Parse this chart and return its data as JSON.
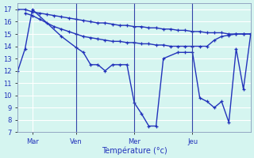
{
  "background_color": "#d5f5f0",
  "grid_color": "#ffffff",
  "line_color": "#2233bb",
  "xlabel": "Température (°c)",
  "ylim": [
    7,
    17.5
  ],
  "yticks": [
    7,
    8,
    9,
    10,
    11,
    12,
    13,
    14,
    15,
    16,
    17
  ],
  "xlim": [
    0,
    96
  ],
  "vline_x": [
    24,
    48,
    72
  ],
  "day_ticks": [
    6,
    24,
    48,
    72
  ],
  "day_labels": [
    "Mar",
    "Ven",
    "Mer",
    "Jeu"
  ],
  "series1": {
    "x": [
      0,
      3,
      6,
      9,
      12,
      15,
      18,
      21,
      24,
      27,
      30,
      33,
      36,
      39,
      42,
      45,
      48,
      51,
      54,
      57,
      60,
      63,
      66,
      69,
      72,
      75,
      78,
      81,
      84,
      87,
      90,
      93,
      96
    ],
    "y": [
      17.0,
      17.0,
      16.8,
      16.7,
      16.6,
      16.5,
      16.4,
      16.3,
      16.2,
      16.1,
      16.0,
      15.9,
      15.9,
      15.8,
      15.7,
      15.7,
      15.6,
      15.6,
      15.5,
      15.5,
      15.4,
      15.4,
      15.3,
      15.3,
      15.2,
      15.2,
      15.1,
      15.1,
      15.1,
      15.0,
      15.0,
      15.0,
      15.0
    ]
  },
  "series2": {
    "x": [
      3,
      6,
      9,
      12,
      15,
      18,
      21,
      24,
      27,
      30,
      33,
      36,
      39,
      42,
      45,
      48,
      51,
      54,
      57,
      60,
      63,
      66,
      69,
      72,
      75,
      78,
      81,
      84,
      87,
      90,
      93,
      96
    ],
    "y": [
      16.7,
      16.5,
      16.2,
      15.9,
      15.6,
      15.4,
      15.2,
      15.0,
      14.8,
      14.7,
      14.6,
      14.5,
      14.4,
      14.4,
      14.3,
      14.3,
      14.2,
      14.2,
      14.1,
      14.1,
      14.0,
      14.0,
      14.0,
      14.0,
      14.0,
      14.0,
      14.5,
      14.8,
      14.9,
      15.0,
      15.0,
      15.0
    ]
  },
  "series3": {
    "x": [
      0,
      3,
      6,
      18,
      24,
      27,
      30,
      33,
      36,
      39,
      42,
      45,
      48,
      51,
      54,
      57,
      60,
      66,
      69,
      72,
      75,
      78,
      81,
      84,
      87,
      90,
      93,
      96
    ],
    "y": [
      12.0,
      13.8,
      17.0,
      14.8,
      13.9,
      13.5,
      12.5,
      12.5,
      12.0,
      12.5,
      12.5,
      12.5,
      9.4,
      8.5,
      7.5,
      7.5,
      13.0,
      13.5,
      13.5,
      13.5,
      9.8,
      9.5,
      9.0,
      9.5,
      7.8,
      13.8,
      10.5,
      15.0
    ]
  },
  "linewidth": 1.0,
  "markersize": 3,
  "markeredgewidth": 0.9
}
